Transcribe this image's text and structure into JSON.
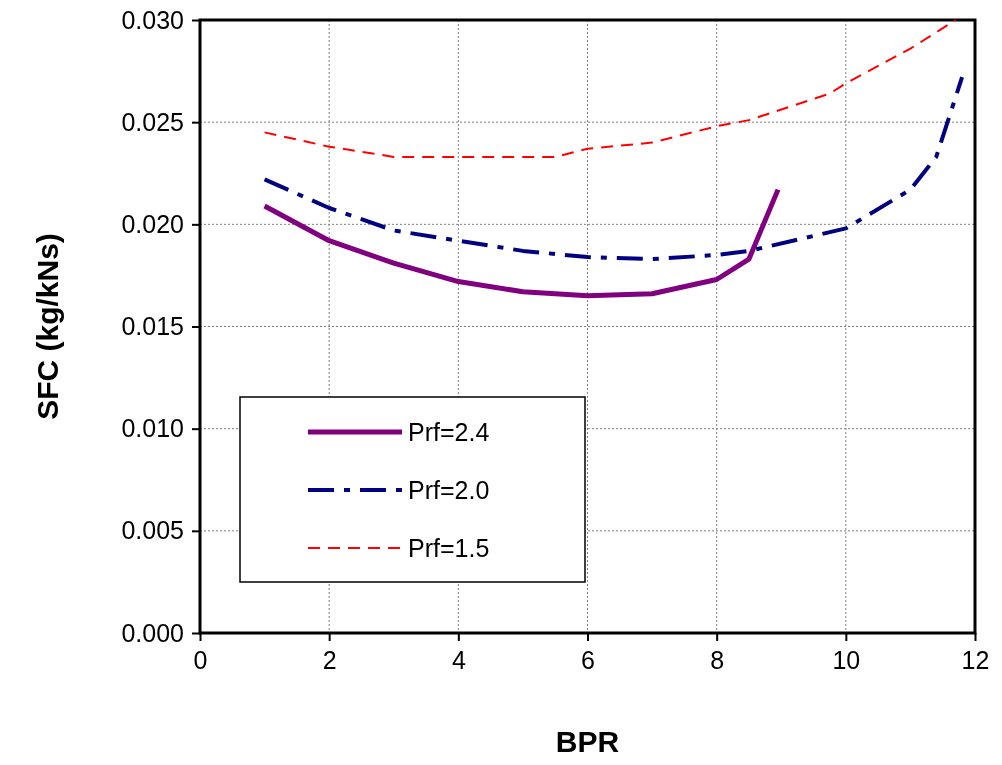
{
  "chart_data": {
    "type": "line",
    "xlabel": "BPR",
    "ylabel": "SFC (kg/kNs)",
    "xlim": [
      0,
      12
    ],
    "xticks": [
      0,
      2,
      4,
      6,
      8,
      10,
      12
    ],
    "ylim": [
      0,
      0.03
    ],
    "yticks": [
      {
        "value": 0,
        "label": "0.000"
      },
      {
        "value": 0.005,
        "label": "0.005"
      },
      {
        "value": 0.01,
        "label": "0.010"
      },
      {
        "value": 0.015,
        "label": "0.015"
      },
      {
        "value": 0.02,
        "label": "0.020"
      },
      {
        "value": 0.025,
        "label": "0.025"
      },
      {
        "value": 0.03,
        "label": "0.030"
      }
    ],
    "grid": true,
    "legend": "bottom left",
    "marker": "none",
    "series": [
      {
        "name": "Prf=2.4",
        "color": "#800080",
        "line_style": "solid",
        "x": [
          1,
          2,
          3,
          4,
          5,
          6,
          7,
          8,
          8.5,
          8.95
        ],
        "values": [
          0.0209,
          0.0192,
          0.0181,
          0.0172,
          0.0167,
          0.0165,
          0.0166,
          0.0173,
          0.0183,
          0.0217
        ]
      },
      {
        "name": "Prf=2.0",
        "color": "#000080",
        "line_style": "dashdot",
        "x": [
          1,
          2,
          3,
          4,
          5,
          6,
          7,
          8,
          8.5,
          10,
          11,
          11.4,
          11.8
        ],
        "values": [
          0.0222,
          0.0208,
          0.0197,
          0.0192,
          0.0187,
          0.0184,
          0.0183,
          0.0185,
          0.0187,
          0.0198,
          0.0217,
          0.0233,
          0.0272
        ]
      },
      {
        "name": "Prf=1.5",
        "color": "#ff0000",
        "line_style": "dashed",
        "x": [
          1,
          2,
          3,
          4,
          5,
          5.5,
          6,
          7,
          8,
          8.5,
          9.75,
          10,
          11,
          11.7
        ],
        "values": [
          0.0245,
          0.0238,
          0.0233,
          0.0233,
          0.0233,
          0.0233,
          0.0237,
          0.024,
          0.0248,
          0.0251,
          0.0264,
          0.0269,
          0.0286,
          0.03
        ]
      }
    ]
  }
}
